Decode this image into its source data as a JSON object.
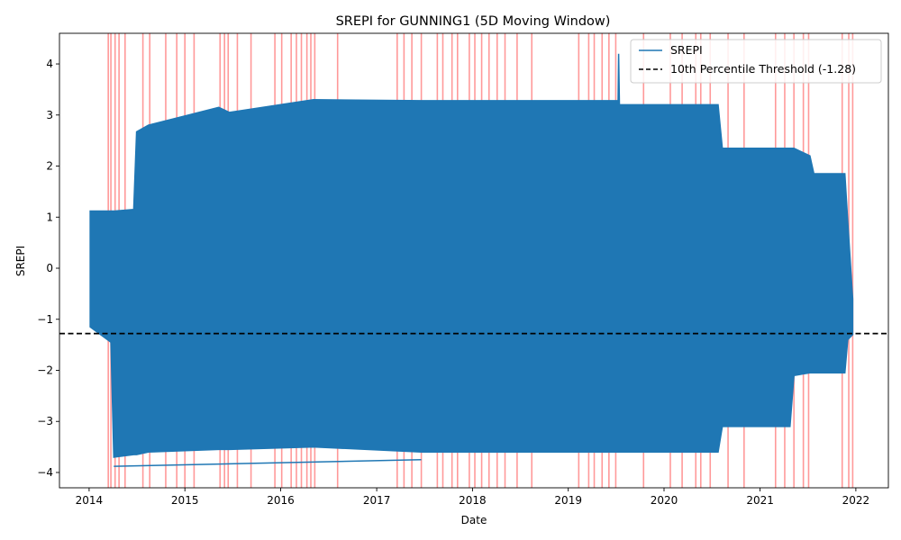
{
  "chart_data": {
    "type": "line",
    "title": "SREPI for GUNNING1 (5D Moving Window)",
    "xlabel": "Date",
    "ylabel": "SREPI",
    "xlim": [
      "2013-09-10",
      "2022-05-05"
    ],
    "ylim": [
      -4.3,
      4.6
    ],
    "x_ticks": [
      "2014",
      "2015",
      "2016",
      "2017",
      "2018",
      "2019",
      "2020",
      "2021",
      "2022"
    ],
    "y_ticks": [
      "−4",
      "−3",
      "−2",
      "−1",
      "0",
      "1",
      "2",
      "3",
      "4"
    ],
    "legend_position": "upper right",
    "grid": false,
    "colors": {
      "series": "#1f77b4",
      "threshold": "#000000",
      "drought_shading": "#ff0000"
    },
    "series": [
      {
        "name": "SREPI",
        "style": "solid",
        "envelope": [
          {
            "date": "2014-01-05",
            "max": 1.12,
            "min": -1.15
          },
          {
            "date": "2014-03-25",
            "max": 1.12,
            "min": -1.45
          },
          {
            "date": "2014-04-05",
            "max": 1.12,
            "min": -3.7
          },
          {
            "date": "2014-06-20",
            "max": 1.15,
            "min": -3.65
          },
          {
            "date": "2014-07-01",
            "max": 2.67,
            "min": -3.65
          },
          {
            "date": "2014-08-15",
            "max": 2.8,
            "min": -3.6
          },
          {
            "date": "2015-05-10",
            "max": 3.15,
            "min": -3.55
          },
          {
            "date": "2015-06-20",
            "max": 3.05,
            "min": -3.55
          },
          {
            "date": "2016-05-05",
            "max": 3.3,
            "min": -3.5
          },
          {
            "date": "2017-06-20",
            "max": 3.28,
            "min": -3.6
          },
          {
            "date": "2019-07-10",
            "max": 3.28,
            "min": -3.6
          },
          {
            "date": "2019-07-12",
            "max": 4.2,
            "min": -3.6
          },
          {
            "date": "2019-07-15",
            "max": 3.2,
            "min": -3.6
          },
          {
            "date": "2020-07-25",
            "max": 3.2,
            "min": -3.6
          },
          {
            "date": "2020-08-10",
            "max": 2.35,
            "min": -3.1
          },
          {
            "date": "2021-04-25",
            "max": 2.35,
            "min": -3.1
          },
          {
            "date": "2021-05-10",
            "max": 2.35,
            "min": -2.1
          },
          {
            "date": "2021-07-10",
            "max": 2.2,
            "min": -2.05
          },
          {
            "date": "2021-07-25",
            "max": 1.85,
            "min": -2.05
          },
          {
            "date": "2021-11-20",
            "max": 1.85,
            "min": -2.05
          },
          {
            "date": "2021-12-01",
            "max": 0.92,
            "min": -1.4
          },
          {
            "date": "2021-12-20",
            "max": -0.6,
            "min": -1.3
          }
        ],
        "outliers": [
          {
            "x1": "2014-04-05",
            "y1": -3.88,
            "x2": "2017-06-20",
            "y2": -3.75
          }
        ]
      },
      {
        "name": "10th Percentile Threshold (-1.28)",
        "style": "dashed",
        "value": -1.28
      }
    ],
    "drought_periods": [
      "2014-03-15",
      "2014-03-25",
      "2014-04-10",
      "2014-04-25",
      "2014-05-18",
      "2014-07-25",
      "2014-08-20",
      "2014-10-20",
      "2014-12-01",
      "2015-01-01",
      "2015-02-05",
      "2015-05-15",
      "2015-06-01",
      "2015-06-15",
      "2015-07-20",
      "2015-09-10",
      "2015-12-10",
      "2016-01-05",
      "2016-02-10",
      "2016-03-01",
      "2016-03-20",
      "2016-04-10",
      "2016-04-25",
      "2016-05-10",
      "2016-08-05",
      "2017-03-20",
      "2017-04-15",
      "2017-05-15",
      "2017-06-20",
      "2017-08-20",
      "2017-09-10",
      "2017-10-15",
      "2017-11-05",
      "2017-12-20",
      "2018-01-10",
      "2018-02-05",
      "2018-03-05",
      "2018-04-05",
      "2018-05-05",
      "2018-06-20",
      "2018-08-15",
      "2019-02-10",
      "2019-03-20",
      "2019-04-10",
      "2019-05-10",
      "2019-06-05",
      "2019-07-01",
      "2019-10-15",
      "2020-01-25",
      "2020-03-10",
      "2020-05-01",
      "2020-05-20",
      "2020-06-25",
      "2020-09-01",
      "2020-11-01",
      "2021-03-01",
      "2021-04-05",
      "2021-05-10",
      "2021-06-15",
      "2021-07-05",
      "2021-11-10",
      "2021-12-05",
      "2021-12-20"
    ]
  }
}
